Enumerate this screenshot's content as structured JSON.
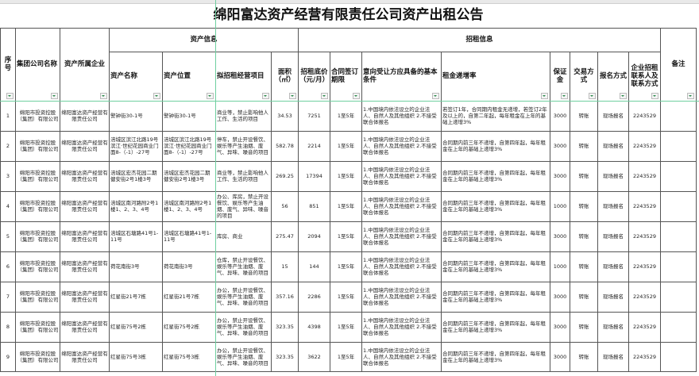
{
  "title": "绵阳富达资产经营有限责任公司资产出租公告",
  "headers": {
    "seq": "序号",
    "group": "集团公司名称",
    "company": "资产所属企业",
    "asset_info": "资产信息",
    "lease_info": "招租信息",
    "asset_name": "资产名称",
    "location": "资产位置",
    "project": "拟招租经营项目",
    "area": "面积（㎡）",
    "price": "招租底价（元/月）",
    "term": "合同签订期限",
    "conditions": "意向受让方应具备的基本条件",
    "increase": "租金递增率",
    "deposit": "保证金",
    "trade": "交易方式",
    "register": "报名方式",
    "contact": "企业招租联系人及联系方式",
    "note": "备注"
  },
  "rows": [
    {
      "seq": "1",
      "group": "绵阳市投资控股（集团）有限公司",
      "company": "绵阳富达资产经营有限责任公司",
      "asset_name": "警钟街30-1号",
      "location": "警钟街30-1号",
      "project": "商业等，禁止影响他人工作、生活的项目",
      "area": "34.53",
      "price": "7251",
      "term": "1至5年",
      "conditions": "1.中国境内依法设立的企业法人、自然人及其他组织 2.不接受联合体报名",
      "increase": "若签订1年，合同期内租金无递增，若签订2年及以上的，自第二年起，每年租金在上年的基础上递增3%",
      "deposit": "3000",
      "trade": "转账",
      "register": "现场报名",
      "contact": "2243529",
      "note": ""
    },
    {
      "seq": "2",
      "group": "绵阳市投资控股（集团）有限公司",
      "company": "绵阳富达资产经营有限责任公司",
      "asset_name": "涪城区滨江北路19号滨江·世纪花园商业门面8-（-1）-27号",
      "location": "涪城区滨江北路19号滨江·世纪花园商业门面8-（-1）-27号",
      "project": "停车，禁止开设餐饮、娱乐等产生油烟、废气、异味、噪音的项目",
      "area": "582.78",
      "price": "2214",
      "term": "1至5年",
      "conditions": "1.中国境内依法设立的企业法人、自然人及其他组织 2.不接受联合体报名",
      "increase": "合同期内前三年不递增，自第四年起，每年租金在上年的基础上递增3%",
      "deposit": "3000",
      "trade": "转账",
      "register": "现场报名",
      "contact": "2243529",
      "note": ""
    },
    {
      "seq": "3",
      "group": "绵阳市投资控股（集团）有限公司",
      "company": "绵阳富达资产经营有限责任公司",
      "asset_name": "涪城区宏杰花园二期健安街2号1楼3号",
      "location": "涪城区宏杰花园二期健安街2号1楼3号",
      "project": "商业等，禁止影响他人工作、生活的项目",
      "area": "269.25",
      "price": "17394",
      "term": "1至5年",
      "conditions": "1.中国境内依法设立的企业法人、自然人及其他组织 2.不接受联合体报名",
      "increase": "合同期内前三年不递增，自第四年起，每年租金在上年的基础上递增3%",
      "deposit": "3000",
      "trade": "转账",
      "register": "现场报名",
      "contact": "2243529",
      "note": ""
    },
    {
      "seq": "4",
      "group": "绵阳市投资控股（集团）有限公司",
      "company": "绵阳富达资产经营有限责任公司",
      "asset_name": "涪城区南河路附2号1楼1、2、3、4号",
      "location": "涪城区南河路附2号1楼1、2、3、4号",
      "project": "办公、库房，禁止开设餐饮、娱乐等产生油烟、废气、异味、噪音的项目",
      "area": "56",
      "price": "851",
      "term": "1至5年",
      "conditions": "1.中国境内依法设立的企业法人、自然人及其他组织 2.不接受联合体报名",
      "increase": "合同期内前三年不递增，自第四年起，每年租金在上年的基础上递增3%",
      "deposit": "1000",
      "trade": "转账",
      "register": "现场报名",
      "contact": "2243529",
      "note": ""
    },
    {
      "seq": "5",
      "group": "绵阳市投资控股（集团）有限公司",
      "company": "绵阳富达资产经营有限责任公司",
      "asset_name": "涪城区石塘路41号1-11号",
      "location": "涪城区石塘路41号1-11号",
      "project": "库房、商业",
      "area": "275.47",
      "price": "2094",
      "term": "1至5年",
      "conditions": "1.中国境内依法设立的企业法人、自然人及其他组织 2.不接受联合体报名",
      "increase": "合同期内前三年不递增，自第四年起，每年租金在上年的基础上递增3%",
      "deposit": "3000",
      "trade": "转账",
      "register": "现场报名",
      "contact": "2243529",
      "note": ""
    },
    {
      "seq": "6",
      "group": "绵阳市投资控股（集团）有限公司",
      "company": "绵阳富达资产经营有限责任公司",
      "asset_name": "荷花南街3号",
      "location": "荷花南街3号",
      "project": "仓库，禁止开设餐饮、娱乐等产生油烟、废气、异味、噪音的项目",
      "area": "15",
      "price": "144",
      "term": "1至5年",
      "conditions": "1.中国境内依法设立的企业法人、自然人及其他组织 2.不接受联合体报名",
      "increase": "合同期内前三年不递增，自第四年起，每年租金在上年的基础上递增3%",
      "deposit": "1000",
      "trade": "转账",
      "register": "现场报名",
      "contact": "2243529",
      "note": ""
    },
    {
      "seq": "7",
      "group": "绵阳市投资控股（集团）有限公司",
      "company": "绵阳富达资产经营有限责任公司",
      "asset_name": "红星街21号7栋",
      "location": "红星街21号7栋",
      "project": "办公，禁止开设餐饮、娱乐等产生油烟、废气、异味、噪音的项目",
      "area": "357.16",
      "price": "2286",
      "term": "1至5年",
      "conditions": "1.中国境内依法设立的企业法人、自然人及其他组织 2.不接受联合体报名",
      "increase": "合同期内前三年不递增，自第四年起，每年租金在上年的基础上递增3%",
      "deposit": "3000",
      "trade": "转账",
      "register": "现场报名",
      "contact": "2243529",
      "note": ""
    },
    {
      "seq": "8",
      "group": "绵阳市投资控股（集团）有限公司",
      "company": "绵阳富达资产经营有限责任公司",
      "asset_name": "红星街75号2栋",
      "location": "红星街75号2栋",
      "project": "办公，禁止开设餐饮、娱乐等产生油烟、废气、异味、噪音的项目",
      "area": "323.35",
      "price": "4398",
      "term": "1至5年",
      "conditions": "1.中国境内依法设立的企业法人、自然人及其他组织 2.不接受联合体报名",
      "increase": "合同期内前三年不递增，自第四年起，每年租金在上年的基础上递增3%",
      "deposit": "3000",
      "trade": "转账",
      "register": "现场报名",
      "contact": "2243529",
      "note": ""
    },
    {
      "seq": "9",
      "group": "绵阳市投资控股（集团）有限公司",
      "company": "绵阳富达资产经营有限责任公司",
      "asset_name": "红星街75号3栋",
      "location": "红星街75号3栋",
      "project": "办公，禁止开设餐饮、娱乐等产生油烟、废气、异味、噪音的项目",
      "area": "323.35",
      "price": "3622",
      "term": "1至5年",
      "conditions": "1.中国境内依法设立的企业法人、自然人及其他组织 2.不接受联合体报名",
      "increase": "合同期内前三年不递增，自第四年起，每年租金在上年的基础上递增3%",
      "deposit": "3000",
      "trade": "转账",
      "register": "现场报名",
      "contact": "2243529",
      "note": ""
    }
  ],
  "colors": {
    "grid": "#555555",
    "selection": "#6fcf9f",
    "filter_arrow": "#2a8a4a"
  }
}
